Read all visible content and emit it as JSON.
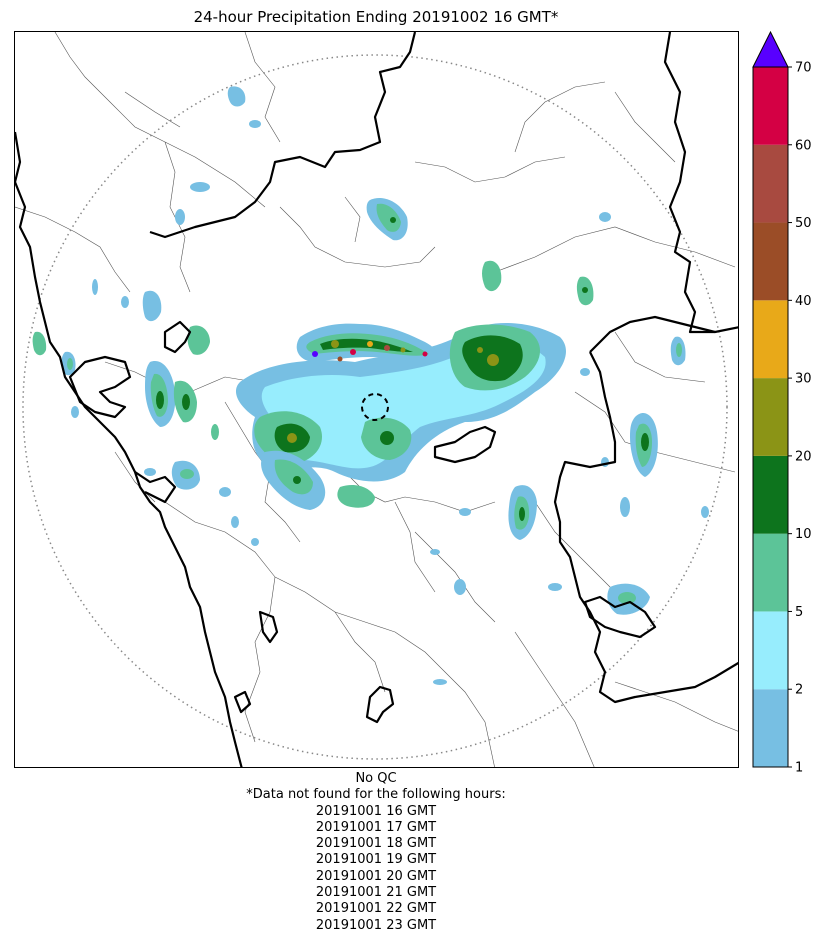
{
  "title": "24-hour Precipitation Ending 20191002 16 GMT*",
  "colorbar": {
    "extend": "max",
    "extend_color": "#5800ff",
    "ticks": [
      "1",
      "2",
      "5",
      "10",
      "20",
      "30",
      "40",
      "50",
      "60",
      "70"
    ],
    "bins": [
      {
        "from": "1",
        "to": "2",
        "color": "#77bfe3"
      },
      {
        "from": "2",
        "to": "5",
        "color": "#97edfd"
      },
      {
        "from": "5",
        "to": "10",
        "color": "#5cc498"
      },
      {
        "from": "10",
        "to": "20",
        "color": "#0d741d"
      },
      {
        "from": "20",
        "to": "30",
        "color": "#8b9416"
      },
      {
        "from": "30",
        "to": "40",
        "color": "#e8a919"
      },
      {
        "from": "40",
        "to": "50",
        "color": "#9b4d27"
      },
      {
        "from": "50",
        "to": "60",
        "color": "#a84a40"
      },
      {
        "from": "60",
        "to": "70",
        "color": "#d40044"
      }
    ]
  },
  "notes": {
    "qc": "No QC",
    "missing_header": "*Data not found for the following hours:",
    "missing_hours": [
      "20191001 16 GMT",
      "20191001 17 GMT",
      "20191001 18 GMT",
      "20191001 19 GMT",
      "20191001 20 GMT",
      "20191001 21 GMT",
      "20191001 22 GMT",
      "20191001 23 GMT"
    ]
  }
}
